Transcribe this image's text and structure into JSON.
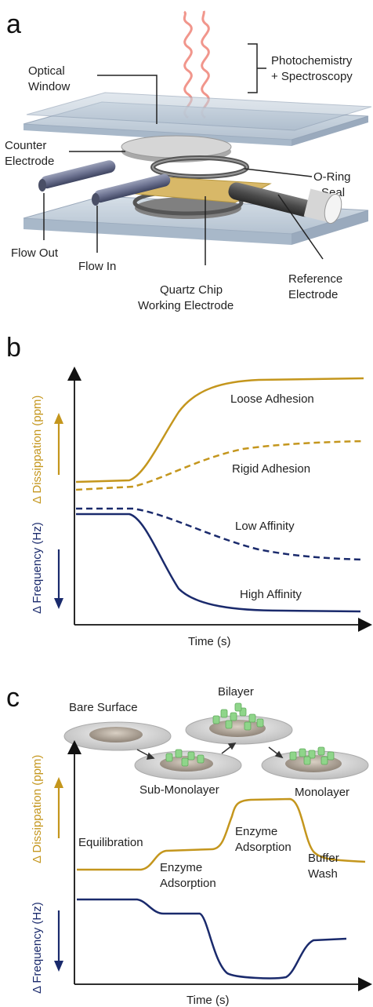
{
  "panels": {
    "a": "a",
    "b": "b",
    "c": "c"
  },
  "diagram": {
    "photochem_line1": "Photochemistry",
    "photochem_line2": "+ Spectroscopy",
    "optical_window_1": "Optical",
    "optical_window_2": "Window",
    "counter_electrode_1": "Counter",
    "counter_electrode_2": "Electrode",
    "oring_1": "O-Ring",
    "oring_2": "Seal",
    "flow_out": "Flow Out",
    "flow_in": "Flow In",
    "quartz_1": "Quartz Chip",
    "quartz_2": "Working Electrode",
    "reference_1": "Reference",
    "reference_2": "Electrode"
  },
  "chart_b": {
    "ylabel_top": "Δ Dissippation (ppm)",
    "ylabel_bottom": "Δ Frequency (Hz)",
    "xlabel": "Time (s)",
    "curves": [
      "Loose Adhesion",
      "Rigid Adhesion",
      "Low Affinity",
      "High Affinity"
    ]
  },
  "chart_c": {
    "ylabel_top": "Δ Dissippation (ppm)",
    "ylabel_bottom": "Δ Frequency (Hz)",
    "xlabel": "Time (s)",
    "stages": [
      "Bare Surface",
      "Sub-Monolayer",
      "Bilayer",
      "Monolayer"
    ],
    "annotations": {
      "equilibration": "Equilibration",
      "enzyme1_line1": "Enzyme",
      "enzyme1_line2": "Adsorption",
      "enzyme2_line1": "Enzyme",
      "enzyme2_line2": "Adsorption",
      "buffer_line1": "Buffer",
      "buffer_line2": "Wash"
    }
  },
  "colors": {
    "gold": "#c4961d",
    "navy": "#1a2a6c",
    "glass": "#b9c7d6",
    "gold_disk": "#d8b868"
  }
}
